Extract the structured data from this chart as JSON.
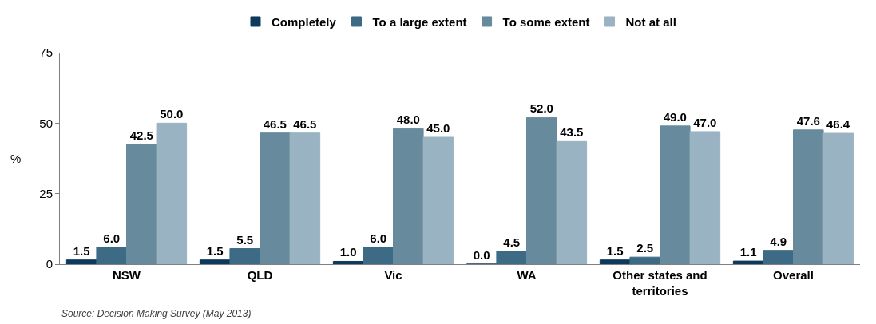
{
  "chart_data": {
    "type": "bar",
    "ylabel": "%",
    "categories": [
      "NSW",
      "QLD",
      "Vic",
      "WA",
      "Other states and territories",
      "Overall"
    ],
    "series": [
      {
        "name": "Completely",
        "color": "#0d3a5c",
        "values": [
          1.5,
          1.5,
          1.0,
          0.0,
          1.5,
          1.1
        ],
        "value_labels": [
          "1.5",
          "1.5",
          "1.0",
          "0.0",
          "1.5",
          "1.1"
        ]
      },
      {
        "name": "To a large extent",
        "color": "#3d6a85",
        "values": [
          6.0,
          5.5,
          6.0,
          4.5,
          2.5,
          4.9
        ],
        "value_labels": [
          "6.0",
          "5.5",
          "6.0",
          "4.5",
          "2.5",
          "4.9"
        ]
      },
      {
        "name": "To some extent",
        "color": "#678a9c",
        "values": [
          42.5,
          46.5,
          48.0,
          52.0,
          49.0,
          47.6
        ],
        "value_labels": [
          "42.5",
          "46.5",
          "48.0",
          "52.0",
          "49.0",
          "47.6"
        ]
      },
      {
        "name": "Not at all",
        "color": "#9ab3c2",
        "values": [
          50.0,
          46.5,
          45.0,
          43.5,
          47.0,
          46.4
        ],
        "value_labels": [
          "50.0",
          "46.5",
          "45.0",
          "43.5",
          "47.0",
          "46.4"
        ]
      }
    ],
    "ylim": [
      0,
      75
    ],
    "yticks": [
      0,
      25,
      50,
      75
    ],
    "legend": "top",
    "annotations": [
      "Source: Decision Making Survey (May 2013)"
    ]
  }
}
